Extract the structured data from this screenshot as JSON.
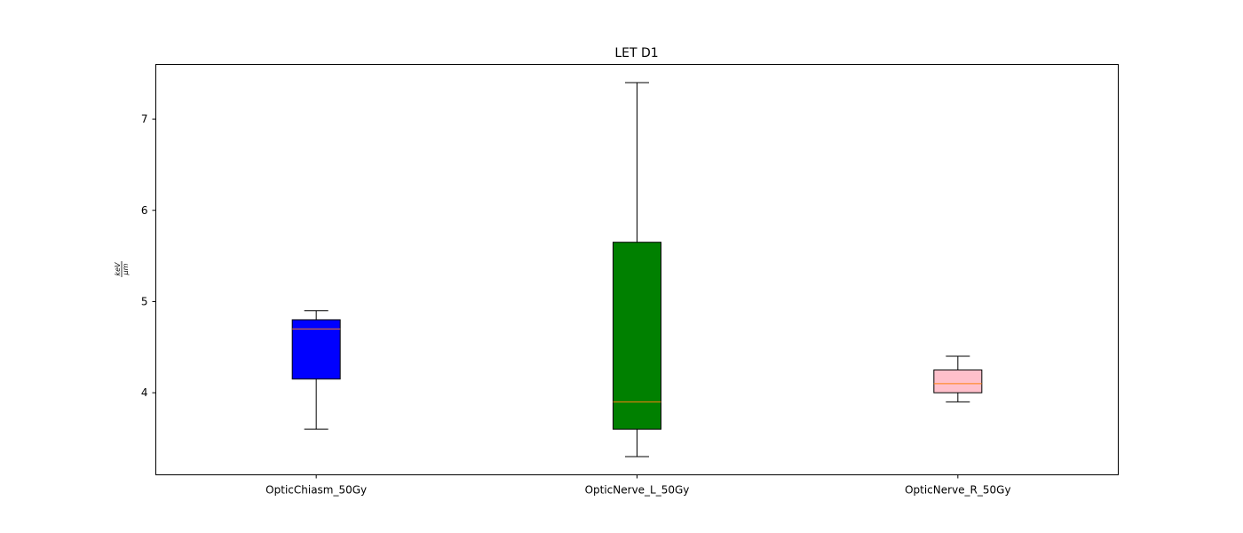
{
  "chart_data": {
    "type": "box",
    "title": "LET D1",
    "xlabel": "",
    "ylabel": {
      "numerator": "keV",
      "denominator": "μm"
    },
    "ylim": [
      3.1,
      7.6
    ],
    "yticks": [
      4,
      5,
      6,
      7
    ],
    "grid": false,
    "categories": [
      "OpticChiasm_50Gy",
      "OpticNerve_L_50Gy",
      "OpticNerve_R_50Gy"
    ],
    "boxes": [
      {
        "category": "OpticChiasm_50Gy",
        "whisker_low": 3.6,
        "q1": 4.15,
        "median": 4.7,
        "q3": 4.8,
        "whisker_high": 4.9,
        "color": "#0000ff"
      },
      {
        "category": "OpticNerve_L_50Gy",
        "whisker_low": 3.3,
        "q1": 3.6,
        "median": 3.9,
        "q3": 5.65,
        "whisker_high": 7.4,
        "color": "#008000"
      },
      {
        "category": "OpticNerve_R_50Gy",
        "whisker_low": 3.9,
        "q1": 4.0,
        "median": 4.1,
        "q3": 4.25,
        "whisker_high": 4.4,
        "color": "#ffc0cb"
      }
    ],
    "median_color": "#ff7f0e"
  }
}
